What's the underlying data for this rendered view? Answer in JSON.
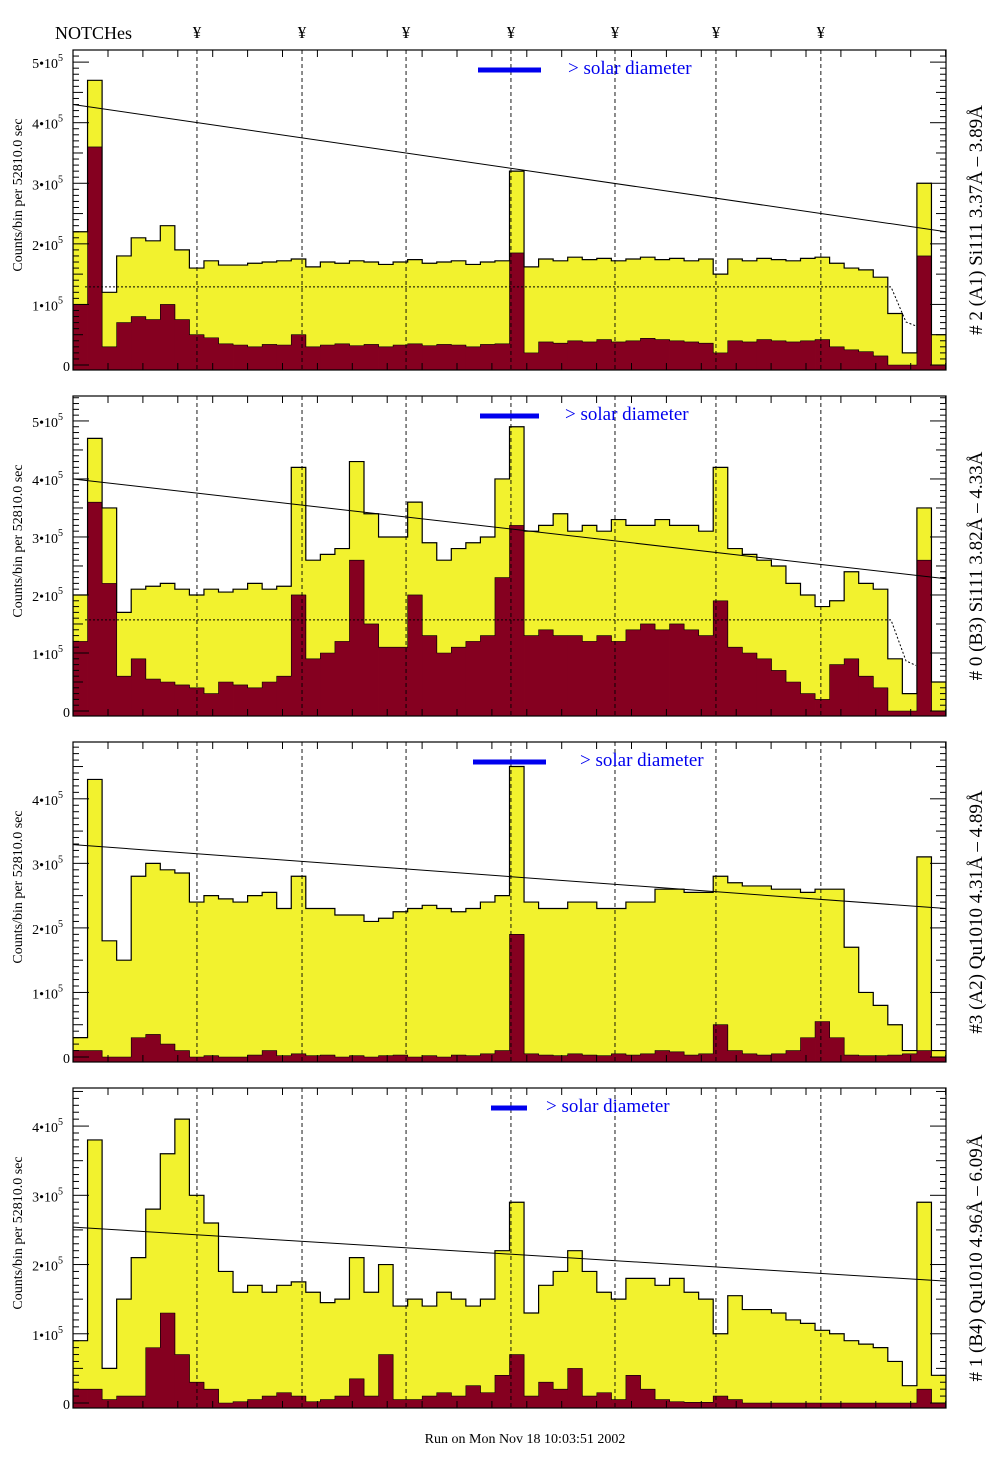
{
  "header": {
    "notches_label": "NOTCHes",
    "notch_symbol": "¥"
  },
  "footer": {
    "run_label": "Run on Mon Nov 18 10:03:51 2002"
  },
  "colors": {
    "fill": "#f2f22e",
    "inner": "#850020",
    "legend": "#0000ee",
    "line": "#000000"
  },
  "chart_data": [
    {
      "type": "bar",
      "title": "# 2 (A1) Si111  3.37Å – 3.89Å",
      "ylabel": "Counts/bin per  52810.0 sec",
      "legend": "> solar diameter",
      "ylim": [
        0,
        5.2
      ],
      "y_unit": 100000,
      "y_ticks": [
        0,
        1,
        2,
        3,
        4,
        5
      ],
      "y_tick_labels": [
        {
          "base": "0",
          "exp": ""
        },
        {
          "base": "1•10",
          "exp": "5"
        },
        {
          "base": "2•10",
          "exp": "5"
        },
        {
          "base": "3•10",
          "exp": "5"
        },
        {
          "base": "4•10",
          "exp": "5"
        },
        {
          "base": "5•10",
          "exp": "5"
        }
      ],
      "xlim": [
        0,
        60
      ],
      "notches": [
        8.52,
        15.74,
        22.89,
        30.1,
        37.25,
        44.19,
        51.4
      ],
      "fit_line": [
        4.3,
        2.2
      ],
      "dotted_level": 1.29,
      "series": [
        {
          "name": "total",
          "values": [
            2.2,
            4.7,
            1.2,
            1.8,
            2.1,
            2.05,
            2.3,
            1.9,
            1.6,
            1.72,
            1.65,
            1.65,
            1.68,
            1.7,
            1.72,
            1.75,
            1.62,
            1.7,
            1.68,
            1.72,
            1.7,
            1.66,
            1.7,
            1.74,
            1.68,
            1.7,
            1.72,
            1.66,
            1.7,
            1.72,
            3.2,
            1.62,
            1.75,
            1.72,
            1.78,
            1.74,
            1.76,
            1.72,
            1.75,
            1.78,
            1.74,
            1.76,
            1.72,
            1.75,
            1.5,
            1.75,
            1.72,
            1.76,
            1.74,
            1.72,
            1.76,
            1.78,
            1.68,
            1.6,
            1.57,
            1.45,
            0.85,
            0.2,
            3.0,
            0.5
          ]
        },
        {
          "name": "inner",
          "values": [
            1.0,
            3.6,
            0.3,
            0.7,
            0.8,
            0.75,
            1.0,
            0.75,
            0.5,
            0.45,
            0.35,
            0.33,
            0.3,
            0.34,
            0.33,
            0.5,
            0.3,
            0.33,
            0.35,
            0.32,
            0.34,
            0.3,
            0.33,
            0.35,
            0.32,
            0.34,
            0.33,
            0.3,
            0.34,
            0.35,
            1.85,
            0.2,
            0.38,
            0.36,
            0.4,
            0.38,
            0.42,
            0.38,
            0.4,
            0.44,
            0.42,
            0.4,
            0.38,
            0.36,
            0.2,
            0.4,
            0.38,
            0.42,
            0.4,
            0.38,
            0.4,
            0.42,
            0.3,
            0.25,
            0.22,
            0.15,
            0,
            0,
            1.8,
            0
          ]
        }
      ]
    },
    {
      "type": "bar",
      "title": "# 0 (B3) Si111  3.82Å – 4.33Å",
      "ylabel": "Counts/bin per  52810.0 sec",
      "legend": "> solar diameter",
      "ylim": [
        0,
        5.43
      ],
      "y_unit": 100000,
      "y_ticks": [
        0,
        1,
        2,
        3,
        4,
        5
      ],
      "y_tick_labels": [
        {
          "base": "0",
          "exp": ""
        },
        {
          "base": "1•10",
          "exp": "5"
        },
        {
          "base": "2•10",
          "exp": "5"
        },
        {
          "base": "3•10",
          "exp": "5"
        },
        {
          "base": "4•10",
          "exp": "5"
        },
        {
          "base": "5•10",
          "exp": "5"
        }
      ],
      "xlim": [
        0,
        60
      ],
      "notches": [
        8.52,
        15.74,
        22.89,
        30.1,
        37.25,
        44.19,
        51.4
      ],
      "fit_line": [
        4.0,
        2.28
      ],
      "dotted_level": 1.57,
      "series": [
        {
          "name": "total",
          "values": [
            2.0,
            4.7,
            3.5,
            1.7,
            2.1,
            2.15,
            2.2,
            2.1,
            2.0,
            2.1,
            2.05,
            2.1,
            2.2,
            2.1,
            2.15,
            4.2,
            2.6,
            2.7,
            2.8,
            4.3,
            3.4,
            3.0,
            3.0,
            3.6,
            2.9,
            2.6,
            2.8,
            2.9,
            3.0,
            4.0,
            4.9,
            3.1,
            3.2,
            3.4,
            3.1,
            3.2,
            3.1,
            3.3,
            3.2,
            3.2,
            3.3,
            3.2,
            3.2,
            3.1,
            4.2,
            2.8,
            2.7,
            2.6,
            2.5,
            2.2,
            2.0,
            1.8,
            1.9,
            2.4,
            2.2,
            2.1,
            0.9,
            0.3,
            3.5,
            0.5
          ]
        },
        {
          "name": "inner",
          "values": [
            1.2,
            3.6,
            2.2,
            0.6,
            0.9,
            0.55,
            0.5,
            0.45,
            0.4,
            0.3,
            0.5,
            0.45,
            0.4,
            0.5,
            0.6,
            2.0,
            0.9,
            1.0,
            1.2,
            2.6,
            1.5,
            1.1,
            1.1,
            2.0,
            1.3,
            1.0,
            1.1,
            1.2,
            1.3,
            2.3,
            3.2,
            1.3,
            1.4,
            1.3,
            1.3,
            1.2,
            1.3,
            1.2,
            1.4,
            1.5,
            1.4,
            1.5,
            1.4,
            1.3,
            1.9,
            1.1,
            1.0,
            0.9,
            0.7,
            0.5,
            0.3,
            0.2,
            0.8,
            0.9,
            0.6,
            0.4,
            0,
            0,
            2.6,
            0
          ]
        }
      ]
    },
    {
      "type": "bar",
      "title": "#3 (A2) Qu1010  4.31Å – 4.89Å",
      "ylabel": "Counts/bin per  52810.0 sec",
      "legend": "> solar diameter",
      "ylim": [
        0,
        4.88
      ],
      "y_unit": 100000,
      "y_ticks": [
        0,
        1,
        2,
        3,
        4
      ],
      "y_tick_labels": [
        {
          "base": "0",
          "exp": ""
        },
        {
          "base": "1•10",
          "exp": "5"
        },
        {
          "base": "2•10",
          "exp": "5"
        },
        {
          "base": "3•10",
          "exp": "5"
        },
        {
          "base": "4•10",
          "exp": "5"
        }
      ],
      "xlim": [
        0,
        60
      ],
      "notches": [
        8.52,
        15.74,
        22.89,
        30.1,
        37.25,
        44.19,
        51.4
      ],
      "fit_line": [
        3.29,
        2.3
      ],
      "dotted_level": null,
      "series": [
        {
          "name": "total",
          "values": [
            0.3,
            4.3,
            1.8,
            1.5,
            2.8,
            3.0,
            2.9,
            2.85,
            2.4,
            2.5,
            2.45,
            2.4,
            2.5,
            2.55,
            2.3,
            2.8,
            2.3,
            2.3,
            2.2,
            2.2,
            2.1,
            2.15,
            2.25,
            2.3,
            2.35,
            2.3,
            2.25,
            2.3,
            2.4,
            2.5,
            4.5,
            2.4,
            2.3,
            2.3,
            2.4,
            2.4,
            2.3,
            2.3,
            2.4,
            2.4,
            2.6,
            2.6,
            2.55,
            2.55,
            2.8,
            2.7,
            2.65,
            2.65,
            2.6,
            2.6,
            2.55,
            2.6,
            2.6,
            1.7,
            1.0,
            0.8,
            0.5,
            0.1,
            3.1,
            0.1
          ]
        },
        {
          "name": "inner",
          "values": [
            0.1,
            0.1,
            0,
            0,
            0.3,
            0.35,
            0.2,
            0.1,
            0,
            0.02,
            0,
            0,
            0.03,
            0.1,
            0.02,
            0.05,
            0.02,
            0.03,
            0,
            0.02,
            0,
            0.02,
            0.03,
            0,
            0.02,
            0,
            0.03,
            0.02,
            0.05,
            0.1,
            1.9,
            0.05,
            0.03,
            0.02,
            0.05,
            0.03,
            0.02,
            0.05,
            0.03,
            0.05,
            0.1,
            0.08,
            0.03,
            0.05,
            0.5,
            0.1,
            0.05,
            0.03,
            0.05,
            0.1,
            0.3,
            0.55,
            0.3,
            0.03,
            0.02,
            0.02,
            0.03,
            0.05,
            0.1,
            0
          ]
        }
      ]
    },
    {
      "type": "bar",
      "title": "# 1 (B4) Qu1010 4.96Å – 6.09Å",
      "ylabel": "Counts/bin per  52810.0 sec",
      "legend": "> solar diameter",
      "ylim": [
        0,
        4.55
      ],
      "y_unit": 100000,
      "y_ticks": [
        0,
        1,
        2,
        3,
        4
      ],
      "y_tick_labels": [
        {
          "base": "0",
          "exp": ""
        },
        {
          "base": "1•10",
          "exp": "5"
        },
        {
          "base": "2•10",
          "exp": "5"
        },
        {
          "base": "3•10",
          "exp": "5"
        },
        {
          "base": "4•10",
          "exp": "5"
        }
      ],
      "xlim": [
        0,
        60
      ],
      "notches": [
        8.52,
        15.74,
        22.89,
        30.1,
        37.25,
        44.19,
        51.4
      ],
      "fit_line": [
        2.54,
        1.76
      ],
      "dotted_level": null,
      "series": [
        {
          "name": "total",
          "values": [
            0.9,
            3.8,
            0.5,
            1.5,
            2.1,
            2.8,
            3.6,
            4.1,
            3.0,
            2.6,
            1.9,
            1.6,
            1.7,
            1.6,
            1.7,
            1.75,
            1.6,
            1.45,
            1.5,
            2.1,
            1.6,
            2.0,
            1.4,
            1.5,
            1.4,
            1.6,
            1.5,
            1.4,
            1.5,
            2.2,
            2.9,
            1.3,
            1.7,
            1.9,
            2.2,
            1.9,
            1.6,
            1.5,
            1.8,
            1.8,
            1.7,
            1.8,
            1.6,
            1.5,
            1.0,
            1.55,
            1.35,
            1.35,
            1.3,
            1.2,
            1.15,
            1.05,
            1.0,
            0.9,
            0.85,
            0.8,
            0.6,
            0.25,
            2.9,
            0.4
          ]
        },
        {
          "name": "inner",
          "values": [
            0.2,
            0.2,
            0.05,
            0.1,
            0.1,
            0.8,
            1.3,
            0.7,
            0.3,
            0.2,
            0,
            0.02,
            0.05,
            0.1,
            0.15,
            0.1,
            0.02,
            0.05,
            0.1,
            0.35,
            0.1,
            0.7,
            0.05,
            0.05,
            0.1,
            0.15,
            0.1,
            0.25,
            0.15,
            0.4,
            0.7,
            0.1,
            0.3,
            0.2,
            0.5,
            0.1,
            0.15,
            0.05,
            0.4,
            0.2,
            0.05,
            0.02,
            0.01,
            0.01,
            0.1,
            0.05,
            0,
            0,
            0,
            0,
            0,
            0,
            0,
            0,
            0,
            0,
            0,
            0,
            0.2,
            0
          ]
        }
      ]
    }
  ]
}
